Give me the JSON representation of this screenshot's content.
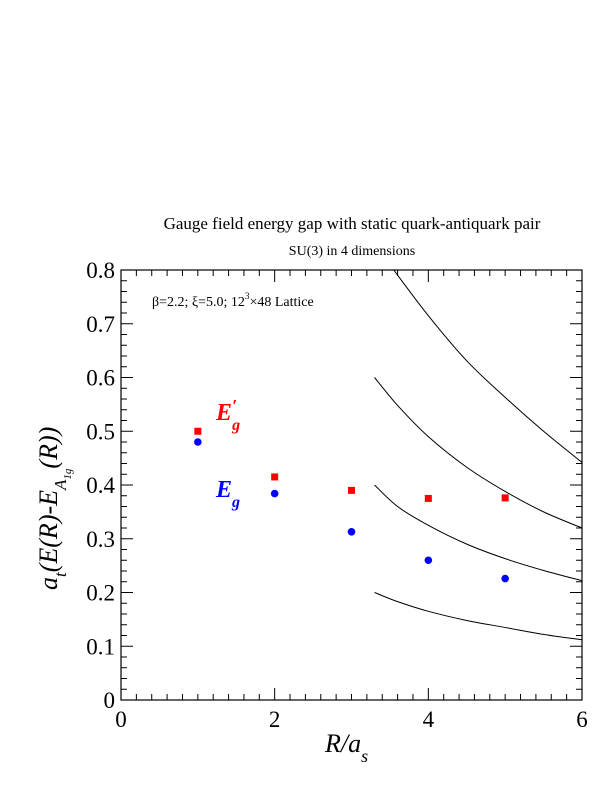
{
  "chart_data": {
    "type": "scatter",
    "title": "Gauge field energy gap with static quark-antiquark pair",
    "subtitle": "SU(3) in 4 dimensions",
    "annotation": {
      "prefix": "β=2.2;  ξ=5.0; 12",
      "superscript": "3",
      "suffix": "×48 Lattice"
    },
    "xlabel": {
      "main": "R/a",
      "sub": "s"
    },
    "ylabel": {
      "part1": "a",
      "sub1": "t",
      "part2": "(E(R)-E",
      "sub2": "A",
      "subsub": "1g",
      "part3": "(R))"
    },
    "xlim": [
      0,
      6
    ],
    "ylim": [
      0,
      0.8
    ],
    "xticks": [
      0,
      2,
      4,
      6
    ],
    "xtick_labels": [
      "0",
      "2",
      "4",
      "6"
    ],
    "yticks": [
      0,
      0.1,
      0.2,
      0.3,
      0.4,
      0.5,
      0.6,
      0.7,
      0.8
    ],
    "ytick_labels": [
      "0",
      "0.1",
      "0.2",
      "0.3",
      "0.4",
      "0.5",
      "0.6",
      "0.7",
      "0.8"
    ],
    "grid": false,
    "series": [
      {
        "name": "E'g",
        "label_main": "E",
        "label_prime": "′",
        "label_sub": "g",
        "color": "#ff0000",
        "marker": "square",
        "x": [
          1,
          2,
          3,
          4,
          5
        ],
        "y": [
          0.5,
          0.415,
          0.39,
          0.375,
          0.376
        ]
      },
      {
        "name": "Eg",
        "label_main": "E",
        "label_prime": "",
        "label_sub": "g",
        "color": "#0000ff",
        "marker": "circle",
        "x": [
          1,
          2,
          3,
          4,
          5
        ],
        "y": [
          0.48,
          0.384,
          0.313,
          0.26,
          0.226
        ]
      }
    ],
    "curves": [
      {
        "x": [
          3.3,
          3.6,
          4.0,
          4.5,
          5.0,
          5.5,
          6.0
        ],
        "y": [
          0.2,
          0.183,
          0.165,
          0.148,
          0.135,
          0.122,
          0.112
        ]
      },
      {
        "x": [
          3.3,
          3.6,
          4.0,
          4.5,
          5.0,
          5.5,
          6.0
        ],
        "y": [
          0.4,
          0.36,
          0.325,
          0.29,
          0.263,
          0.241,
          0.222
        ]
      },
      {
        "x": [
          3.3,
          3.6,
          4.0,
          4.5,
          5.0,
          5.5,
          6.0
        ],
        "y": [
          0.6,
          0.548,
          0.49,
          0.433,
          0.388,
          0.35,
          0.32
        ]
      },
      {
        "x": [
          3.55,
          4.0,
          4.5,
          5.0,
          5.5,
          6.0
        ],
        "y": [
          0.8,
          0.715,
          0.631,
          0.563,
          0.5,
          0.442
        ]
      }
    ]
  }
}
